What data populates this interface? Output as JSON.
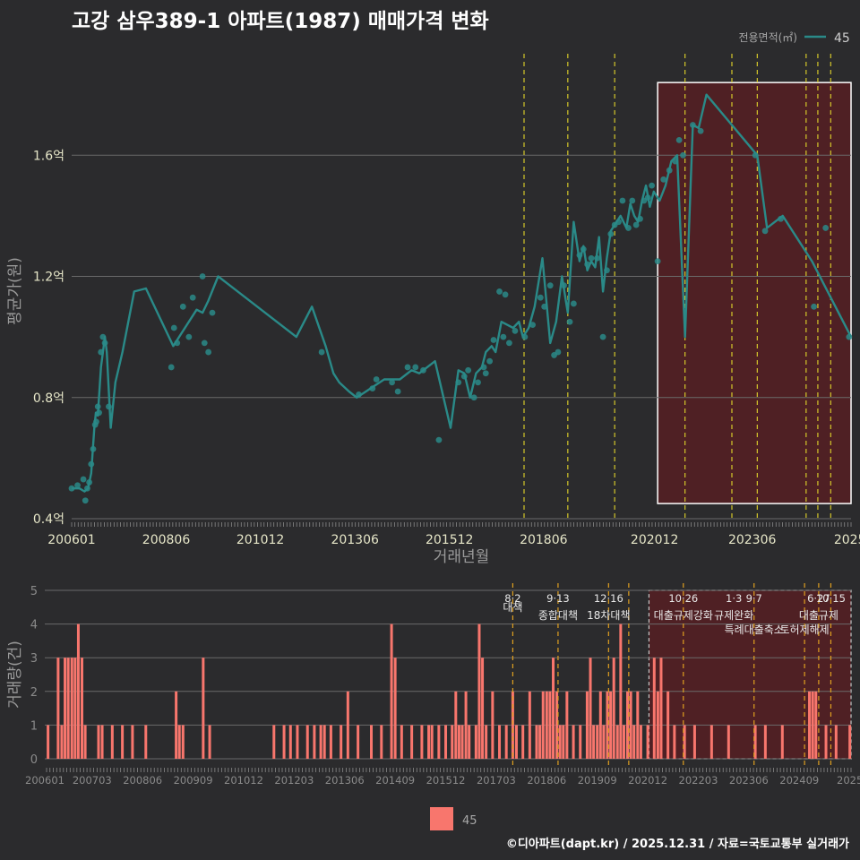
{
  "header": {
    "title": "고강 삼우389-1 아파트(1987) 매매가격 변화",
    "legend_title": "전용면적(㎡)",
    "legend_label": "45"
  },
  "footer": {
    "credit": "©디아파트(dapt.kr) / 2025.12.31 / 자료=국토교통부 실거래가"
  },
  "colors": {
    "background": "#2b2b2d",
    "line": "#2a8a88",
    "bar": "#f8766d",
    "policy_line": "#d4c72a",
    "highlight_fill": "#5c1d22"
  },
  "chart_data": [
    {
      "type": "line",
      "title": "고강 삼우389-1 아파트(1987) 매매가격 변화",
      "xlabel": "거래년월",
      "ylabel": "평균가(원)",
      "xlim": [
        2006.0,
        2025.95
      ],
      "ylim": [
        0.4,
        1.87
      ],
      "yticks": [
        0.4,
        0.8,
        1.2,
        1.6
      ],
      "ytick_labels": [
        "0.4억",
        "0.8억",
        "1.2억",
        "1.6억"
      ],
      "xticks": [
        2006.0,
        2008.42,
        2010.83,
        2013.25,
        2015.67,
        2018.08,
        2020.92,
        2023.42,
        2025.92
      ],
      "xtick_labels": [
        "200601",
        "200806",
        "201012",
        "201306",
        "201512",
        "201806",
        "202012",
        "202306",
        "2025"
      ],
      "policy_lines": [
        2017.58,
        2018.7,
        2019.9,
        2021.7,
        2022.9,
        2023.55,
        2024.8,
        2025.1,
        2025.43
      ],
      "highlight": {
        "x_start": 2021.0,
        "x_end": 2025.95,
        "y_min": 0.45,
        "y_max": 1.84
      },
      "series": [
        {
          "name": "45",
          "x": [
            2006.0,
            2006.2,
            2006.33,
            2006.42,
            2006.5,
            2006.58,
            2006.62,
            2006.67,
            2006.75,
            2006.8,
            2006.85,
            2006.9,
            2007.0,
            2007.12,
            2007.3,
            2007.6,
            2007.9,
            2008.6,
            2009.2,
            2009.35,
            2009.5,
            2009.75,
            2011.75,
            2012.15,
            2012.5,
            2012.7,
            2012.85,
            2013.1,
            2013.3,
            2014.0,
            2014.4,
            2014.7,
            2014.9,
            2015.3,
            2015.7,
            2015.9,
            2016.05,
            2016.2,
            2016.35,
            2016.5,
            2016.6,
            2016.75,
            2016.85,
            2017.0,
            2017.15,
            2017.3,
            2017.45,
            2017.55,
            2017.7,
            2017.85,
            2018.05,
            2018.25,
            2018.4,
            2018.55,
            2018.7,
            2018.85,
            2019.0,
            2019.1,
            2019.2,
            2019.3,
            2019.4,
            2019.5,
            2019.6,
            2019.7,
            2019.8,
            2019.9,
            2020.05,
            2020.2,
            2020.3,
            2020.4,
            2020.5,
            2020.6,
            2020.7,
            2020.8,
            2020.9,
            2021.05,
            2021.2,
            2021.35,
            2021.5,
            2021.7,
            2021.9,
            2022.05,
            2022.25,
            2023.55,
            2023.8,
            2024.2,
            2024.95,
            2025.95
          ],
          "values": [
            0.5,
            0.5,
            0.49,
            0.5,
            0.55,
            0.7,
            0.75,
            0.74,
            0.9,
            0.95,
            1.0,
            0.95,
            0.7,
            0.85,
            0.95,
            1.15,
            1.16,
            0.97,
            1.09,
            1.08,
            1.12,
            1.2,
            1.0,
            1.1,
            0.97,
            0.88,
            0.85,
            0.82,
            0.8,
            0.86,
            0.86,
            0.89,
            0.88,
            0.92,
            0.7,
            0.89,
            0.88,
            0.8,
            0.88,
            0.9,
            0.95,
            0.97,
            0.95,
            1.05,
            1.04,
            1.03,
            1.05,
            1.0,
            1.03,
            1.1,
            1.26,
            0.98,
            1.05,
            1.2,
            1.08,
            1.38,
            1.25,
            1.3,
            1.22,
            1.25,
            1.23,
            1.33,
            1.15,
            1.26,
            1.35,
            1.37,
            1.4,
            1.36,
            1.44,
            1.4,
            1.38,
            1.45,
            1.5,
            1.43,
            1.48,
            1.45,
            1.5,
            1.58,
            1.6,
            1.0,
            1.7,
            1.69,
            1.8,
            1.6,
            1.36,
            1.4,
            1.25,
            1.0
          ]
        }
      ],
      "points": {
        "x": [
          2006.0,
          2006.15,
          2006.3,
          2006.35,
          2006.4,
          2006.45,
          2006.5,
          2006.55,
          2006.6,
          2006.63,
          2006.67,
          2006.7,
          2006.75,
          2006.8,
          2006.85,
          2006.95,
          2008.55,
          2008.62,
          2008.7,
          2008.85,
          2009.0,
          2009.1,
          2009.35,
          2009.4,
          2009.5,
          2009.6,
          2012.4,
          2013.35,
          2013.7,
          2013.8,
          2014.2,
          2014.35,
          2014.6,
          2014.8,
          2015.0,
          2015.4,
          2015.9,
          2016.05,
          2016.15,
          2016.3,
          2016.4,
          2016.55,
          2016.6,
          2016.7,
          2016.8,
          2016.95,
          2017.05,
          2017.1,
          2017.2,
          2017.35,
          2017.6,
          2017.8,
          2018.0,
          2018.1,
          2018.25,
          2018.35,
          2018.45,
          2018.6,
          2018.75,
          2018.85,
          2019.0,
          2019.1,
          2019.2,
          2019.3,
          2019.45,
          2019.6,
          2019.7,
          2019.8,
          2019.9,
          2020.0,
          2020.1,
          2020.25,
          2020.35,
          2020.45,
          2020.55,
          2020.65,
          2020.75,
          2020.85,
          2021.0,
          2021.15,
          2021.3,
          2021.45,
          2021.55,
          2021.65,
          2021.9,
          2022.1,
          2023.5,
          2023.75,
          2024.15,
          2025.0,
          2025.3,
          2025.9
        ],
        "values": [
          0.5,
          0.51,
          0.53,
          0.46,
          0.5,
          0.52,
          0.58,
          0.63,
          0.71,
          0.72,
          0.77,
          0.75,
          0.95,
          1.0,
          0.98,
          0.77,
          0.9,
          1.03,
          0.98,
          1.1,
          1.0,
          1.13,
          1.2,
          0.98,
          0.95,
          1.08,
          0.95,
          0.81,
          0.83,
          0.86,
          0.85,
          0.82,
          0.9,
          0.9,
          0.89,
          0.66,
          0.85,
          0.87,
          0.89,
          0.8,
          0.85,
          0.9,
          0.88,
          0.92,
          0.99,
          1.15,
          1.0,
          1.14,
          0.98,
          1.02,
          1.0,
          1.04,
          1.13,
          1.1,
          1.17,
          0.94,
          0.95,
          1.17,
          1.05,
          1.11,
          1.27,
          1.29,
          1.24,
          1.26,
          1.26,
          1.0,
          1.22,
          1.34,
          1.37,
          1.38,
          1.45,
          1.36,
          1.45,
          1.37,
          1.39,
          1.45,
          1.46,
          1.5,
          1.25,
          1.52,
          1.55,
          1.58,
          1.65,
          1.6,
          1.7,
          1.68,
          1.6,
          1.35,
          1.39,
          1.1,
          1.36,
          1.0
        ]
      }
    },
    {
      "type": "bar",
      "ylabel": "거래량(건)",
      "ylim": [
        0,
        5
      ],
      "yticks": [
        0,
        1,
        2,
        3,
        4,
        5
      ],
      "ytick_labels": [
        "0",
        "1",
        "2",
        "3",
        "4",
        "5"
      ],
      "xlim": [
        2006.0,
        2025.95
      ],
      "xticks": [
        2006.0,
        2007.17,
        2008.42,
        2009.67,
        2010.92,
        2012.17,
        2013.42,
        2014.67,
        2015.92,
        2017.17,
        2018.42,
        2019.67,
        2020.92,
        2022.17,
        2023.42,
        2024.67,
        2025.92
      ],
      "xtick_labels": [
        "200601",
        "200703",
        "200806",
        "200909",
        "201012",
        "201203",
        "201306",
        "201409",
        "201512",
        "201703",
        "201806",
        "201909",
        "202012",
        "202203",
        "202306",
        "202409",
        "2025"
      ],
      "highlight": {
        "x_start": 2020.95,
        "x_end": 2025.95
      },
      "policy_lines": [
        2017.58,
        2018.7,
        2019.95,
        2020.45,
        2021.8,
        2023.55,
        2024.8,
        2025.15,
        2025.45
      ],
      "policy_labels": [
        {
          "x": 2017.58,
          "date": "8·2",
          "text": "대책"
        },
        {
          "x": 2018.7,
          "date": "9·13",
          "text": "종합대책"
        },
        {
          "x": 2019.95,
          "date": "12·16",
          "text": "18차대책"
        },
        {
          "x": 2021.8,
          "date": "10·26",
          "text": "대출규제강화"
        },
        {
          "x": 2023.05,
          "date": "1·3",
          "text": "규제완화"
        },
        {
          "x": 2023.55,
          "date": "9·7",
          "text": "특례대출축소"
        },
        {
          "x": 2024.8,
          "date": "",
          "text": "토허제해제"
        },
        {
          "x": 2025.15,
          "date": "6·27",
          "text": "대출규제"
        },
        {
          "x": 2025.45,
          "date": "10·15",
          "text": ""
        }
      ],
      "x": [
        2006.08,
        2006.33,
        2006.42,
        2006.5,
        2006.58,
        2006.67,
        2006.75,
        2006.83,
        2006.92,
        2007.0,
        2007.33,
        2007.42,
        2007.67,
        2007.92,
        2008.17,
        2008.5,
        2009.25,
        2009.33,
        2009.42,
        2009.92,
        2010.08,
        2011.67,
        2011.92,
        2012.08,
        2012.25,
        2012.5,
        2012.67,
        2012.83,
        2012.92,
        2013.08,
        2013.33,
        2013.5,
        2013.75,
        2014.08,
        2014.33,
        2014.58,
        2014.67,
        2014.83,
        2015.08,
        2015.33,
        2015.5,
        2015.58,
        2015.75,
        2015.92,
        2016.08,
        2016.17,
        2016.25,
        2016.33,
        2016.42,
        2016.5,
        2016.67,
        2016.75,
        2016.83,
        2016.92,
        2017.08,
        2017.25,
        2017.42,
        2017.58,
        2017.67,
        2017.83,
        2018.0,
        2018.17,
        2018.25,
        2018.33,
        2018.42,
        2018.5,
        2018.58,
        2018.67,
        2018.75,
        2018.83,
        2018.92,
        2019.08,
        2019.25,
        2019.42,
        2019.5,
        2019.58,
        2019.67,
        2019.75,
        2019.83,
        2019.92,
        2020.0,
        2020.08,
        2020.17,
        2020.25,
        2020.33,
        2020.42,
        2020.5,
        2020.58,
        2020.67,
        2020.75,
        2020.92,
        2021.08,
        2021.17,
        2021.25,
        2021.42,
        2021.58,
        2021.83,
        2022.08,
        2022.5,
        2022.92,
        2023.58,
        2023.83,
        2024.25,
        2024.92,
        2025.0,
        2025.08,
        2025.33,
        2025.58,
        2025.92
      ],
      "values": [
        1,
        3,
        1,
        3,
        3,
        3,
        3,
        4,
        3,
        1,
        1,
        1,
        1,
        1,
        1,
        1,
        2,
        1,
        1,
        3,
        1,
        1,
        1,
        1,
        1,
        1,
        1,
        1,
        1,
        1,
        1,
        2,
        1,
        1,
        1,
        4,
        3,
        1,
        1,
        1,
        1,
        1,
        1,
        1,
        1,
        2,
        1,
        1,
        2,
        1,
        1,
        4,
        3,
        1,
        2,
        1,
        1,
        2,
        1,
        1,
        2,
        1,
        1,
        2,
        2,
        2,
        3,
        2,
        1,
        1,
        2,
        1,
        1,
        2,
        3,
        1,
        1,
        2,
        1,
        2,
        2,
        3,
        1,
        4,
        1,
        2,
        2,
        1,
        2,
        1,
        1,
        3,
        2,
        3,
        2,
        1,
        1,
        1,
        1,
        1,
        1,
        1,
        1,
        2,
        2,
        2,
        1,
        1,
        1
      ]
    }
  ],
  "bottom_legend": {
    "label": "45"
  }
}
